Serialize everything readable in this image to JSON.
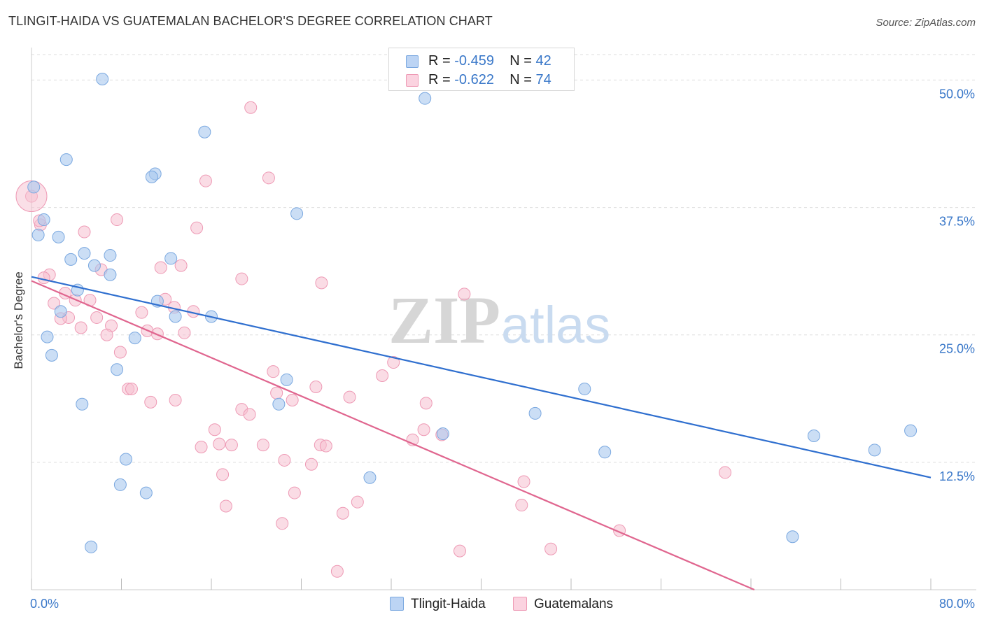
{
  "header": {
    "title": "TLINGIT-HAIDA VS GUATEMALAN BACHELOR'S DEGREE CORRELATION CHART",
    "source": "Source: ZipAtlas.com"
  },
  "watermark": {
    "zip": "ZIP",
    "atlas": "atlas"
  },
  "legend": {
    "series1": {
      "r_label": "R =",
      "r_value": "-0.459",
      "n_label": "N =",
      "n_value": "42"
    },
    "series2": {
      "r_label": "R =",
      "r_value": "-0.622",
      "n_label": "N =",
      "n_value": "74"
    }
  },
  "bottom_legend": {
    "series1": "Tlingit-Haida",
    "series2": "Guatemalans"
  },
  "colors": {
    "blue_fill": "#a9c8ef",
    "blue_stroke": "#7aa8e0",
    "blue_line": "#2f6fcf",
    "pink_fill": "#f6bfd0",
    "pink_stroke": "#ee9ab5",
    "pink_line": "#e0668f",
    "axis_label": "#3a78c9",
    "grid": "#dddddd"
  },
  "chart_data": {
    "type": "scatter",
    "title": "TLINGIT-HAIDA VS GUATEMALAN BACHELOR'S DEGREE CORRELATION CHART",
    "xlabel": "",
    "ylabel": "Bachelor's Degree",
    "xlim": [
      0,
      80
    ],
    "ylim": [
      0,
      52.5
    ],
    "x_tick_labels": [
      "0.0%",
      "80.0%"
    ],
    "y_ticks": [
      12.5,
      25.0,
      37.5,
      50.0
    ],
    "y_tick_labels": [
      "12.5%",
      "25.0%",
      "37.5%",
      "50.0%"
    ],
    "grid": true,
    "legend_position": "top-center",
    "series": [
      {
        "name": "Tlingit-Haida",
        "color": "#a9c8ef",
        "trend": {
          "x": [
            0,
            80
          ],
          "y": [
            30.7,
            11.0
          ]
        },
        "points": [
          [
            0.2,
            39.5
          ],
          [
            6.3,
            50.1
          ],
          [
            3.1,
            42.2
          ],
          [
            15.4,
            44.9
          ],
          [
            11.0,
            40.8
          ],
          [
            10.7,
            40.5
          ],
          [
            23.6,
            36.9
          ],
          [
            1.1,
            36.3
          ],
          [
            0.6,
            34.8
          ],
          [
            2.4,
            34.6
          ],
          [
            4.7,
            33.0
          ],
          [
            7.0,
            32.8
          ],
          [
            3.5,
            32.4
          ],
          [
            12.4,
            32.5
          ],
          [
            5.6,
            31.8
          ],
          [
            7.0,
            30.9
          ],
          [
            4.1,
            29.4
          ],
          [
            11.2,
            28.3
          ],
          [
            2.6,
            27.3
          ],
          [
            12.8,
            26.8
          ],
          [
            16.0,
            26.8
          ],
          [
            1.4,
            24.8
          ],
          [
            9.2,
            24.7
          ],
          [
            1.8,
            23.0
          ],
          [
            7.6,
            21.6
          ],
          [
            22.7,
            20.6
          ],
          [
            22.0,
            18.2
          ],
          [
            4.5,
            18.2
          ],
          [
            49.2,
            19.7
          ],
          [
            44.8,
            17.3
          ],
          [
            36.6,
            15.3
          ],
          [
            69.6,
            15.1
          ],
          [
            78.2,
            15.6
          ],
          [
            75.0,
            13.7
          ],
          [
            51.0,
            13.5
          ],
          [
            8.4,
            12.8
          ],
          [
            30.1,
            11.0
          ],
          [
            7.9,
            10.3
          ],
          [
            10.2,
            9.5
          ],
          [
            67.7,
            5.2
          ],
          [
            5.3,
            4.2
          ],
          [
            35.0,
            48.2
          ]
        ]
      },
      {
        "name": "Guatemalans",
        "color": "#f6bfd0",
        "trend": {
          "x": [
            0,
            64.3
          ],
          "y": [
            30.3,
            0
          ]
        },
        "points": [
          [
            0.0,
            38.6
          ],
          [
            19.5,
            47.3
          ],
          [
            15.5,
            40.1
          ],
          [
            21.1,
            40.4
          ],
          [
            7.6,
            36.3
          ],
          [
            14.7,
            35.5
          ],
          [
            0.8,
            35.8
          ],
          [
            4.7,
            35.1
          ],
          [
            13.3,
            31.8
          ],
          [
            11.5,
            31.6
          ],
          [
            6.2,
            31.4
          ],
          [
            1.6,
            30.9
          ],
          [
            1.1,
            30.6
          ],
          [
            18.7,
            30.5
          ],
          [
            25.8,
            30.1
          ],
          [
            38.5,
            29.0
          ],
          [
            3.0,
            29.1
          ],
          [
            11.9,
            28.5
          ],
          [
            5.2,
            28.4
          ],
          [
            3.9,
            28.4
          ],
          [
            2.0,
            28.1
          ],
          [
            12.7,
            27.7
          ],
          [
            14.4,
            27.3
          ],
          [
            9.8,
            27.2
          ],
          [
            5.8,
            26.7
          ],
          [
            3.3,
            26.7
          ],
          [
            2.6,
            26.6
          ],
          [
            7.1,
            25.9
          ],
          [
            4.4,
            25.7
          ],
          [
            10.3,
            25.4
          ],
          [
            13.6,
            25.2
          ],
          [
            11.2,
            25.1
          ],
          [
            6.7,
            25.0
          ],
          [
            7.9,
            23.3
          ],
          [
            32.2,
            22.3
          ],
          [
            21.5,
            21.4
          ],
          [
            31.2,
            21.0
          ],
          [
            25.3,
            19.9
          ],
          [
            8.6,
            19.7
          ],
          [
            8.9,
            19.7
          ],
          [
            21.8,
            19.3
          ],
          [
            28.3,
            18.9
          ],
          [
            12.8,
            18.6
          ],
          [
            10.6,
            18.4
          ],
          [
            23.2,
            18.6
          ],
          [
            35.1,
            18.3
          ],
          [
            18.7,
            17.7
          ],
          [
            19.4,
            17.2
          ],
          [
            16.3,
            15.7
          ],
          [
            34.9,
            15.7
          ],
          [
            36.5,
            15.2
          ],
          [
            33.9,
            14.7
          ],
          [
            15.1,
            14.0
          ],
          [
            16.7,
            14.3
          ],
          [
            17.8,
            14.2
          ],
          [
            25.7,
            14.2
          ],
          [
            26.2,
            14.1
          ],
          [
            20.6,
            14.2
          ],
          [
            22.5,
            12.7
          ],
          [
            24.9,
            12.3
          ],
          [
            17.0,
            11.3
          ],
          [
            61.7,
            11.5
          ],
          [
            43.8,
            10.6
          ],
          [
            23.4,
            9.5
          ],
          [
            17.3,
            8.2
          ],
          [
            29.0,
            8.6
          ],
          [
            27.7,
            7.5
          ],
          [
            43.6,
            8.3
          ],
          [
            22.3,
            6.5
          ],
          [
            52.3,
            5.8
          ],
          [
            46.2,
            4.0
          ],
          [
            38.1,
            3.8
          ],
          [
            27.2,
            1.8
          ],
          [
            0.7,
            36.2
          ]
        ]
      }
    ]
  }
}
